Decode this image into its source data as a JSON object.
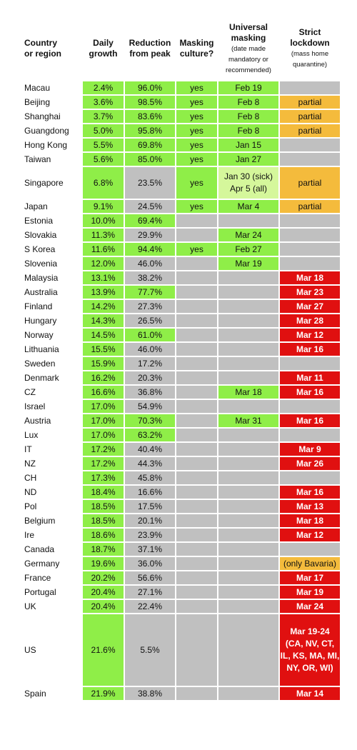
{
  "header": {
    "country": [
      "Country",
      "or region"
    ],
    "daily": [
      "Daily",
      "growth"
    ],
    "reduction": [
      "Reduction",
      "from peak"
    ],
    "masking": [
      "Masking",
      "culture?"
    ],
    "universal": [
      "Universal",
      "masking"
    ],
    "universal_sub": [
      "(date made",
      "mandatory or",
      "recommended)"
    ],
    "lockdown": [
      "Strict",
      "lockdown"
    ],
    "lockdown_sub": [
      "(mass home",
      "quarantine)"
    ]
  },
  "rows": [
    {
      "country": "Macau",
      "growth": "2.4%",
      "reduction": "96.0%",
      "reduction_highlight": true,
      "masking": "yes",
      "universal": "Feb 19",
      "lockdown": "",
      "lockdown_status": "none"
    },
    {
      "country": "Beijing",
      "growth": "3.6%",
      "reduction": "98.5%",
      "reduction_highlight": true,
      "masking": "yes",
      "universal": "Feb 8",
      "lockdown": "partial",
      "lockdown_status": "partial"
    },
    {
      "country": "Shanghai",
      "growth": "3.7%",
      "reduction": "83.6%",
      "reduction_highlight": true,
      "masking": "yes",
      "universal": "Feb 8",
      "lockdown": "partial",
      "lockdown_status": "partial"
    },
    {
      "country": "Guangdong",
      "growth": "5.0%",
      "reduction": "95.8%",
      "reduction_highlight": true,
      "masking": "yes",
      "universal": "Feb 8",
      "lockdown": "partial",
      "lockdown_status": "partial"
    },
    {
      "country": "Hong Kong",
      "growth": "5.5%",
      "reduction": "69.8%",
      "reduction_highlight": true,
      "masking": "yes",
      "universal": "Jan 15",
      "lockdown": "",
      "lockdown_status": "none"
    },
    {
      "country": "Taiwan",
      "growth": "5.6%",
      "reduction": "85.0%",
      "reduction_highlight": true,
      "masking": "yes",
      "universal": "Jan 27",
      "lockdown": "",
      "lockdown_status": "none"
    },
    {
      "country": "Singapore",
      "growth": "6.8%",
      "reduction": "23.5%",
      "reduction_highlight": false,
      "masking": "yes",
      "universal": "Jan 30 (sick)\nApr 5 (all)",
      "universal_light": true,
      "lockdown": "partial",
      "lockdown_status": "partial",
      "tall": true
    },
    {
      "country": "Japan",
      "growth": "9.1%",
      "reduction": "24.5%",
      "reduction_highlight": false,
      "masking": "yes",
      "universal": "Mar 4",
      "lockdown": "partial",
      "lockdown_status": "partial"
    },
    {
      "country": "Estonia",
      "growth": "10.0%",
      "reduction": "69.4%",
      "reduction_highlight": true,
      "masking": "",
      "universal": "",
      "lockdown": "",
      "lockdown_status": "none"
    },
    {
      "country": "Slovakia",
      "growth": "11.3%",
      "reduction": "29.9%",
      "reduction_highlight": false,
      "masking": "",
      "universal": "Mar 24",
      "lockdown": "",
      "lockdown_status": "none"
    },
    {
      "country": "S Korea",
      "growth": "11.6%",
      "reduction": "94.4%",
      "reduction_highlight": true,
      "masking": "yes",
      "universal": "Feb 27",
      "lockdown": "",
      "lockdown_status": "none"
    },
    {
      "country": "Slovenia",
      "growth": "12.0%",
      "reduction": "46.0%",
      "reduction_highlight": false,
      "masking": "",
      "universal": "Mar 19",
      "lockdown": "",
      "lockdown_status": "none"
    },
    {
      "country": "Malaysia",
      "growth": "13.1%",
      "reduction": "38.2%",
      "reduction_highlight": false,
      "masking": "",
      "universal": "",
      "lockdown": "Mar 18",
      "lockdown_status": "strict"
    },
    {
      "country": "Australia",
      "growth": "13.9%",
      "reduction": "77.7%",
      "reduction_highlight": true,
      "masking": "",
      "universal": "",
      "lockdown": "Mar 23",
      "lockdown_status": "strict"
    },
    {
      "country": "Finland",
      "growth": "14.2%",
      "reduction": "27.3%",
      "reduction_highlight": false,
      "masking": "",
      "universal": "",
      "lockdown": "Mar 27",
      "lockdown_status": "strict"
    },
    {
      "country": "Hungary",
      "growth": "14.3%",
      "reduction": "26.5%",
      "reduction_highlight": false,
      "masking": "",
      "universal": "",
      "lockdown": "Mar 28",
      "lockdown_status": "strict"
    },
    {
      "country": "Norway",
      "growth": "14.5%",
      "reduction": "61.0%",
      "reduction_highlight": true,
      "masking": "",
      "universal": "",
      "lockdown": "Mar 12",
      "lockdown_status": "strict"
    },
    {
      "country": "Lithuania",
      "growth": "15.5%",
      "reduction": "46.0%",
      "reduction_highlight": false,
      "masking": "",
      "universal": "",
      "lockdown": "Mar 16",
      "lockdown_status": "strict"
    },
    {
      "country": "Sweden",
      "growth": "15.9%",
      "reduction": "17.2%",
      "reduction_highlight": false,
      "masking": "",
      "universal": "",
      "lockdown": "",
      "lockdown_status": "none"
    },
    {
      "country": "Denmark",
      "growth": "16.2%",
      "reduction": "20.3%",
      "reduction_highlight": false,
      "masking": "",
      "universal": "",
      "lockdown": "Mar 11",
      "lockdown_status": "strict"
    },
    {
      "country": "CZ",
      "growth": "16.6%",
      "reduction": "36.8%",
      "reduction_highlight": false,
      "masking": "",
      "universal": "Mar 18",
      "lockdown": "Mar 16",
      "lockdown_status": "strict"
    },
    {
      "country": "Israel",
      "growth": "17.0%",
      "reduction": "54.9%",
      "reduction_highlight": false,
      "masking": "",
      "universal": "",
      "lockdown": "",
      "lockdown_status": "none"
    },
    {
      "country": "Austria",
      "growth": "17.0%",
      "reduction": "70.3%",
      "reduction_highlight": true,
      "masking": "",
      "universal": "Mar 31",
      "lockdown": "Mar 16",
      "lockdown_status": "strict"
    },
    {
      "country": "Lux",
      "growth": "17.0%",
      "reduction": "63.2%",
      "reduction_highlight": true,
      "masking": "",
      "universal": "",
      "lockdown": "",
      "lockdown_status": "none"
    },
    {
      "country": "IT",
      "growth": "17.2%",
      "reduction": "40.4%",
      "reduction_highlight": false,
      "masking": "",
      "universal": "",
      "lockdown": "Mar 9",
      "lockdown_status": "strict"
    },
    {
      "country": "NZ",
      "growth": "17.2%",
      "reduction": "44.3%",
      "reduction_highlight": false,
      "masking": "",
      "universal": "",
      "lockdown": "Mar 26",
      "lockdown_status": "strict"
    },
    {
      "country": "CH",
      "growth": "17.3%",
      "reduction": "45.8%",
      "reduction_highlight": false,
      "masking": "",
      "universal": "",
      "lockdown": "",
      "lockdown_status": "none"
    },
    {
      "country": "ND",
      "growth": "18.4%",
      "reduction": "16.6%",
      "reduction_highlight": false,
      "masking": "",
      "universal": "",
      "lockdown": "Mar 16",
      "lockdown_status": "strict"
    },
    {
      "country": "Pol",
      "growth": "18.5%",
      "reduction": "17.5%",
      "reduction_highlight": false,
      "masking": "",
      "universal": "",
      "lockdown": "Mar 13",
      "lockdown_status": "strict"
    },
    {
      "country": "Belgium",
      "growth": "18.5%",
      "reduction": "20.1%",
      "reduction_highlight": false,
      "masking": "",
      "universal": "",
      "lockdown": "Mar 18",
      "lockdown_status": "strict"
    },
    {
      "country": "Ire",
      "growth": "18.6%",
      "reduction": "23.9%",
      "reduction_highlight": false,
      "masking": "",
      "universal": "",
      "lockdown": "Mar 12",
      "lockdown_status": "strict"
    },
    {
      "country": "Canada",
      "growth": "18.7%",
      "reduction": "37.1%",
      "reduction_highlight": false,
      "masking": "",
      "universal": "",
      "lockdown": "",
      "lockdown_status": "none"
    },
    {
      "country": "Germany",
      "growth": "19.6%",
      "reduction": "36.0%",
      "reduction_highlight": false,
      "masking": "",
      "universal": "",
      "lockdown": "(only Bavaria)",
      "lockdown_status": "partial"
    },
    {
      "country": "France",
      "growth": "20.2%",
      "reduction": "56.6%",
      "reduction_highlight": false,
      "masking": "",
      "universal": "",
      "lockdown": "Mar 17",
      "lockdown_status": "strict"
    },
    {
      "country": "Portugal",
      "growth": "20.4%",
      "reduction": "27.1%",
      "reduction_highlight": false,
      "masking": "",
      "universal": "",
      "lockdown": "Mar 19",
      "lockdown_status": "strict"
    },
    {
      "country": "UK",
      "growth": "20.4%",
      "reduction": "22.4%",
      "reduction_highlight": false,
      "masking": "",
      "universal": "",
      "lockdown": "Mar 24",
      "lockdown_status": "strict"
    },
    {
      "country": "US",
      "growth": "21.6%",
      "reduction": "5.5%",
      "reduction_highlight": false,
      "masking": "",
      "universal": "",
      "lockdown": "Mar 19-24\n(CA, NV, CT,\nIL, KS, MA, MI,\nNY, OR, WI)",
      "lockdown_status": "strict",
      "xtall": true
    },
    {
      "country": "Spain",
      "growth": "21.9%",
      "reduction": "38.8%",
      "reduction_highlight": false,
      "masking": "",
      "universal": "",
      "lockdown": "Mar 14",
      "lockdown_status": "strict"
    }
  ],
  "colors": {
    "green": "#8fee48",
    "light_green": "#d5f79b",
    "gray": "#c0c0c0",
    "orange": "#f4bb3c",
    "red": "#e01010"
  }
}
